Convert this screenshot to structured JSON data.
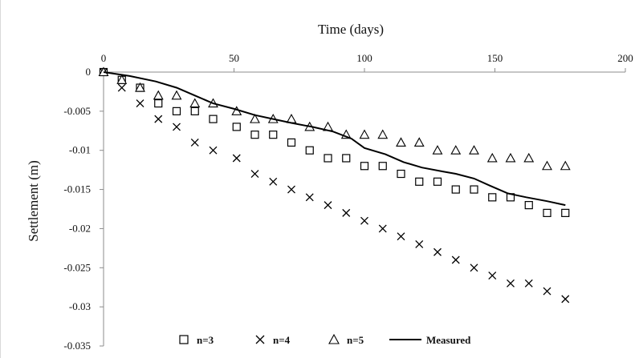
{
  "chart_data": {
    "type": "scatter",
    "title": "",
    "xlabel": "Time (days)",
    "ylabel": "Settlement (m)",
    "xlim": [
      0,
      200
    ],
    "ylim": [
      -0.035,
      0
    ],
    "x_axis_position": "top",
    "x_ticks": [
      0,
      50,
      100,
      150,
      200
    ],
    "x_tick_labels": [
      "0",
      "50",
      "100",
      "150",
      "200"
    ],
    "y_ticks": [
      0,
      -0.005,
      -0.01,
      -0.015,
      -0.02,
      -0.025,
      -0.03,
      -0.035
    ],
    "y_tick_labels": [
      "0",
      "-0.005",
      "-0.01",
      "-0.015",
      "-0.02",
      "-0.025",
      "-0.03",
      "-0.035"
    ],
    "grid": false,
    "legend_position": "bottom",
    "series": [
      {
        "name": "n=3",
        "marker": "square",
        "color": "#000000",
        "points": [
          [
            0,
            0
          ],
          [
            7,
            -0.001
          ],
          [
            14,
            -0.002
          ],
          [
            21,
            -0.004
          ],
          [
            28,
            -0.005
          ],
          [
            35,
            -0.005
          ],
          [
            42,
            -0.006
          ],
          [
            51,
            -0.007
          ],
          [
            58,
            -0.008
          ],
          [
            65,
            -0.008
          ],
          [
            72,
            -0.009
          ],
          [
            79,
            -0.01
          ],
          [
            86,
            -0.011
          ],
          [
            93,
            -0.011
          ],
          [
            100,
            -0.012
          ],
          [
            107,
            -0.012
          ],
          [
            114,
            -0.013
          ],
          [
            121,
            -0.014
          ],
          [
            128,
            -0.014
          ],
          [
            135,
            -0.015
          ],
          [
            142,
            -0.015
          ],
          [
            149,
            -0.016
          ],
          [
            156,
            -0.016
          ],
          [
            163,
            -0.017
          ],
          [
            170,
            -0.018
          ],
          [
            177,
            -0.018
          ]
        ]
      },
      {
        "name": "n=4",
        "marker": "x",
        "color": "#000000",
        "points": [
          [
            0,
            0
          ],
          [
            7,
            -0.002
          ],
          [
            14,
            -0.004
          ],
          [
            21,
            -0.006
          ],
          [
            28,
            -0.007
          ],
          [
            35,
            -0.009
          ],
          [
            42,
            -0.01
          ],
          [
            51,
            -0.011
          ],
          [
            58,
            -0.013
          ],
          [
            65,
            -0.014
          ],
          [
            72,
            -0.015
          ],
          [
            79,
            -0.016
          ],
          [
            86,
            -0.017
          ],
          [
            93,
            -0.018
          ],
          [
            100,
            -0.019
          ],
          [
            107,
            -0.02
          ],
          [
            114,
            -0.021
          ],
          [
            121,
            -0.022
          ],
          [
            128,
            -0.023
          ],
          [
            135,
            -0.024
          ],
          [
            142,
            -0.025
          ],
          [
            149,
            -0.026
          ],
          [
            156,
            -0.027
          ],
          [
            163,
            -0.027
          ],
          [
            170,
            -0.028
          ],
          [
            177,
            -0.029
          ]
        ]
      },
      {
        "name": "n=5",
        "marker": "triangle",
        "color": "#000000",
        "points": [
          [
            0,
            0
          ],
          [
            7,
            -0.001
          ],
          [
            14,
            -0.002
          ],
          [
            21,
            -0.003
          ],
          [
            28,
            -0.003
          ],
          [
            35,
            -0.004
          ],
          [
            42,
            -0.004
          ],
          [
            51,
            -0.005
          ],
          [
            58,
            -0.006
          ],
          [
            65,
            -0.006
          ],
          [
            72,
            -0.006
          ],
          [
            79,
            -0.007
          ],
          [
            86,
            -0.007
          ],
          [
            93,
            -0.008
          ],
          [
            100,
            -0.008
          ],
          [
            107,
            -0.008
          ],
          [
            114,
            -0.009
          ],
          [
            121,
            -0.009
          ],
          [
            128,
            -0.01
          ],
          [
            135,
            -0.01
          ],
          [
            142,
            -0.01
          ],
          [
            149,
            -0.011
          ],
          [
            156,
            -0.011
          ],
          [
            163,
            -0.011
          ],
          [
            170,
            -0.012
          ],
          [
            177,
            -0.012
          ]
        ]
      },
      {
        "name": "Measured",
        "marker": "line",
        "color": "#000000",
        "points": [
          [
            0,
            0
          ],
          [
            10,
            -0.0005
          ],
          [
            20,
            -0.0012
          ],
          [
            28,
            -0.002
          ],
          [
            35,
            -0.003
          ],
          [
            42,
            -0.004
          ],
          [
            50,
            -0.0047
          ],
          [
            58,
            -0.0055
          ],
          [
            65,
            -0.006
          ],
          [
            72,
            -0.0065
          ],
          [
            80,
            -0.007
          ],
          [
            88,
            -0.0076
          ],
          [
            95,
            -0.0085
          ],
          [
            100,
            -0.0097
          ],
          [
            108,
            -0.0105
          ],
          [
            115,
            -0.0115
          ],
          [
            122,
            -0.0122
          ],
          [
            130,
            -0.0127
          ],
          [
            135,
            -0.013
          ],
          [
            142,
            -0.0136
          ],
          [
            148,
            -0.0145
          ],
          [
            155,
            -0.0155
          ],
          [
            162,
            -0.016
          ],
          [
            170,
            -0.0165
          ],
          [
            177,
            -0.017
          ]
        ]
      }
    ]
  }
}
